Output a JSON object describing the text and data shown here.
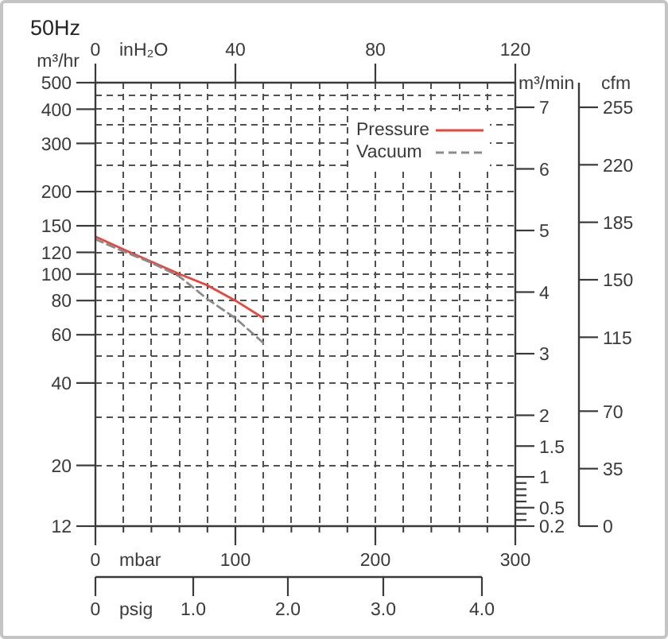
{
  "chart_data": {
    "type": "line",
    "title": "50Hz",
    "xlabel": "mbar",
    "x2label": "inH₂O",
    "ylabel": "m³/hr",
    "y2label": "m³/min",
    "y3label": "cfm",
    "annotations": [
      "0",
      "psig",
      "1.0",
      "2.0",
      "3.0",
      "4.0"
    ],
    "x": [
      0,
      20,
      40,
      60,
      80,
      100,
      120
    ],
    "series": [
      {
        "name": "Pressure",
        "color": "#e8453c",
        "line_style": "solid",
        "values": [
          137,
          123,
          111,
          100,
          91,
          80,
          69
        ]
      },
      {
        "name": "Vacuum",
        "color": "#8a8a8a",
        "line_style": "dashed",
        "values": [
          134,
          121,
          110,
          98,
          81,
          69,
          56
        ]
      }
    ],
    "xlim": [
      0,
      300
    ],
    "xticks": [
      0,
      {
        "value": 20,
        "label": null
      },
      {
        "value": 40,
        "label": null
      },
      {
        "value": 60,
        "label": null
      },
      {
        "value": 80,
        "label": null
      },
      100,
      {
        "value": 120,
        "label": null
      },
      {
        "value": 140,
        "label": null
      },
      {
        "value": 160,
        "label": null
      },
      {
        "value": 180,
        "label": null
      },
      200,
      {
        "value": 220,
        "label": null
      },
      {
        "value": 240,
        "label": null
      },
      {
        "value": 260,
        "label": null
      },
      {
        "value": 280,
        "label": null
      },
      300
    ],
    "x2lim": [
      0,
      120
    ],
    "x2ticks": [
      0,
      40,
      80,
      120
    ],
    "ylim": [
      12,
      500
    ],
    "yticks": [
      12,
      20,
      {
        "value": 30,
        "label": null
      },
      40,
      {
        "value": 50,
        "label": null
      },
      60,
      {
        "value": 70,
        "label": null
      },
      80,
      {
        "value": 90,
        "label": null
      },
      100,
      120,
      150,
      200,
      {
        "value": 250,
        "label": null
      },
      300,
      {
        "value": 350,
        "label": null
      },
      400,
      {
        "value": 450,
        "label": null
      },
      500
    ],
    "y2lim": [
      0.2,
      7.4
    ],
    "y2ticks": [
      0.2,
      {
        "value": 0.3,
        "label": null
      },
      {
        "value": 0.4,
        "label": null
      },
      0.5,
      {
        "value": 0.6,
        "label": null
      },
      {
        "value": 0.7,
        "label": null
      },
      {
        "value": 0.8,
        "label": null
      },
      {
        "value": 0.9,
        "label": null
      },
      1,
      1.5,
      2,
      3,
      4,
      5,
      6,
      7
    ],
    "y3lim": [
      0,
      270
    ],
    "y3ticks": [
      0,
      35,
      70,
      115,
      150,
      185,
      220,
      255
    ],
    "log": true,
    "grid": true,
    "legend": "top right"
  }
}
